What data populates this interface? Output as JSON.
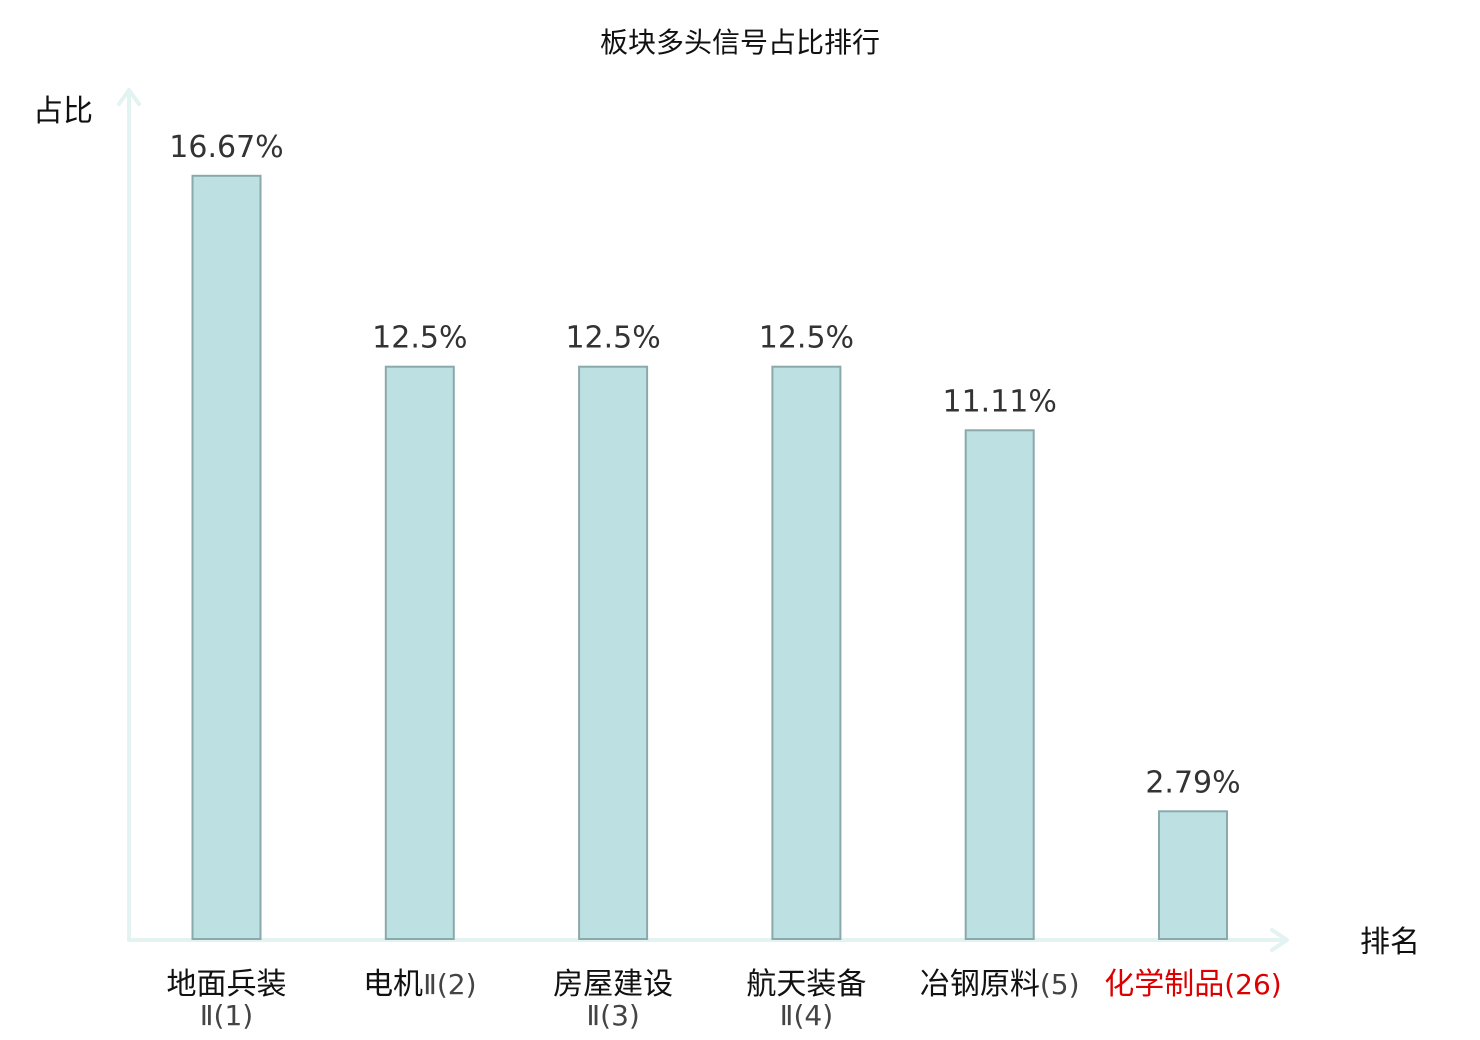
{
  "chart_data": {
    "type": "bar",
    "title": "板块多头信号占比排行",
    "ylabel": "占比",
    "xlabel": "排名",
    "ylim": [
      0,
      18.5
    ],
    "grid": false,
    "categories": [
      {
        "main": "地面兵装",
        "suffix": "Ⅱ(1)",
        "wrap": true,
        "highlight": false
      },
      {
        "main": "电机",
        "suffix": "Ⅱ(2)",
        "wrap": false,
        "highlight": false
      },
      {
        "main": "房屋建设",
        "suffix": "Ⅱ(3)",
        "wrap": true,
        "highlight": false
      },
      {
        "main": "航天装备",
        "suffix": "Ⅱ(4)",
        "wrap": true,
        "highlight": false
      },
      {
        "main": "冶钢原料",
        "suffix": "(5)",
        "wrap": false,
        "highlight": false
      },
      {
        "main": "化学制品",
        "suffix": "(26)",
        "wrap": false,
        "highlight": true
      }
    ],
    "values": [
      16.67,
      12.5,
      12.5,
      12.5,
      11.11,
      2.79
    ],
    "value_labels": [
      "16.67%",
      "12.5%",
      "12.5%",
      "12.5%",
      "11.11%",
      "2.79%"
    ],
    "colors": {
      "bar_fill": "#bde1e3",
      "bar_stroke": "#8aa9aa",
      "axis": "#e2f3f1",
      "highlight_text": "#dd0000"
    }
  }
}
